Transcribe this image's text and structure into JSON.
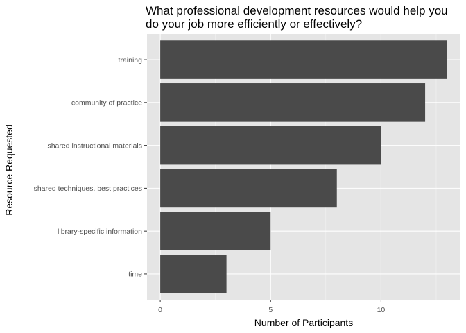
{
  "colors": {
    "panel_background": "#e5e5e5",
    "grid_major": "#ffffff",
    "bar_fill": "#4a4a4a",
    "tick_mark": "#333333"
  },
  "chart_data": {
    "type": "bar",
    "orientation": "horizontal",
    "title_lines": [
      "What professional development resources would help you",
      "do your job more efficiently or effectively?"
    ],
    "xlabel": "Number of Participants",
    "ylabel": "Resource Requested",
    "categories": [
      "training",
      "community of practice",
      "shared instructional materials",
      "shared techniques, best practices",
      "library-specific information",
      "time"
    ],
    "values": [
      13,
      12,
      10,
      8,
      5,
      3
    ],
    "xlim": [
      -0.6,
      13.6
    ],
    "xticks": [
      0,
      5,
      10
    ],
    "grid": true,
    "legend": "none"
  }
}
